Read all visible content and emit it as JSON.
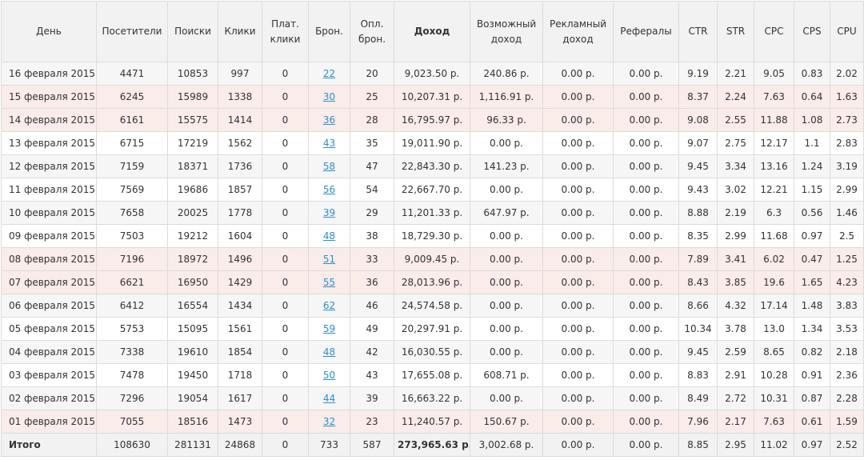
{
  "table": {
    "headers": [
      "День",
      "Посетители",
      "Поиски",
      "Клики",
      "Плат. клики",
      "Брон.",
      "Опл. брон.",
      "Доход",
      "Возможный доход",
      "Рекламный доход",
      "Рефералы",
      "CTR",
      "STR",
      "CPC",
      "CPS",
      "CPU"
    ],
    "rows": [
      [
        "16 февраля 2015",
        "4471",
        "10853",
        "997",
        "0",
        "22",
        "20",
        "9,023.50 р.",
        "240.86 р.",
        "0.00 р.",
        "0.00 р.",
        "9.19",
        "2.21",
        "9.05",
        "0.83",
        "2.02"
      ],
      [
        "15 февраля 2015",
        "6245",
        "15989",
        "1338",
        "0",
        "30",
        "25",
        "10,207.31 р.",
        "1,116.91 р.",
        "0.00 р.",
        "0.00 р.",
        "8.37",
        "2.24",
        "7.63",
        "0.64",
        "1.63"
      ],
      [
        "14 февраля 2015",
        "6161",
        "15575",
        "1414",
        "0",
        "36",
        "28",
        "16,795.97 р.",
        "96.33 р.",
        "0.00 р.",
        "0.00 р.",
        "9.08",
        "2.55",
        "11.88",
        "1.08",
        "2.73"
      ],
      [
        "13 февраля 2015",
        "6715",
        "17219",
        "1562",
        "0",
        "43",
        "35",
        "19,011.90 р.",
        "0.00 р.",
        "0.00 р.",
        "0.00 р.",
        "9.07",
        "2.75",
        "12.17",
        "1.1",
        "2.83"
      ],
      [
        "12 февраля 2015",
        "7159",
        "18371",
        "1736",
        "0",
        "58",
        "47",
        "22,843.30 р.",
        "141.23 р.",
        "0.00 р.",
        "0.00 р.",
        "9.45",
        "3.34",
        "13.16",
        "1.24",
        "3.19"
      ],
      [
        "11 февраля 2015",
        "7569",
        "19686",
        "1857",
        "0",
        "56",
        "54",
        "22,667.70 р.",
        "0.00 р.",
        "0.00 р.",
        "0.00 р.",
        "9.43",
        "3.02",
        "12.21",
        "1.15",
        "2.99"
      ],
      [
        "10 февраля 2015",
        "7658",
        "20025",
        "1778",
        "0",
        "39",
        "29",
        "11,201.33 р.",
        "647.97 р.",
        "0.00 р.",
        "0.00 р.",
        "8.88",
        "2.19",
        "6.3",
        "0.56",
        "1.46"
      ],
      [
        "09 февраля 2015",
        "7503",
        "19212",
        "1604",
        "0",
        "48",
        "38",
        "18,729.30 р.",
        "0.00 р.",
        "0.00 р.",
        "0.00 р.",
        "8.35",
        "2.99",
        "11.68",
        "0.97",
        "2.5"
      ],
      [
        "08 февраля 2015",
        "7196",
        "18972",
        "1496",
        "0",
        "51",
        "33",
        "9,009.45 р.",
        "0.00 р.",
        "0.00 р.",
        "0.00 р.",
        "7.89",
        "3.41",
        "6.02",
        "0.47",
        "1.25"
      ],
      [
        "07 февраля 2015",
        "6621",
        "16950",
        "1429",
        "0",
        "55",
        "36",
        "28,013.96 р.",
        "0.00 р.",
        "0.00 р.",
        "0.00 р.",
        "8.43",
        "3.85",
        "19.6",
        "1.65",
        "4.23"
      ],
      [
        "06 февраля 2015",
        "6412",
        "16554",
        "1434",
        "0",
        "62",
        "46",
        "24,574.58 р.",
        "0.00 р.",
        "0.00 р.",
        "0.00 р.",
        "8.66",
        "4.32",
        "17.14",
        "1.48",
        "3.83"
      ],
      [
        "05 февраля 2015",
        "5753",
        "15095",
        "1561",
        "0",
        "59",
        "49",
        "20,297.91 р.",
        "0.00 р.",
        "0.00 р.",
        "0.00 р.",
        "10.34",
        "3.78",
        "13.0",
        "1.34",
        "3.53"
      ],
      [
        "04 февраля 2015",
        "7338",
        "19610",
        "1854",
        "0",
        "48",
        "42",
        "16,030.55 р.",
        "0.00 р.",
        "0.00 р.",
        "0.00 р.",
        "9.45",
        "2.59",
        "8.65",
        "0.82",
        "2.18"
      ],
      [
        "03 февраля 2015",
        "7478",
        "19450",
        "1718",
        "0",
        "50",
        "43",
        "17,655.08 р.",
        "608.71 р.",
        "0.00 р.",
        "0.00 р.",
        "8.83",
        "2.91",
        "10.28",
        "0.91",
        "2.36"
      ],
      [
        "02 февраля 2015",
        "7296",
        "19054",
        "1617",
        "0",
        "44",
        "39",
        "16,663.22 р.",
        "0.00 р.",
        "0.00 р.",
        "0.00 р.",
        "8.49",
        "2.72",
        "10.31",
        "0.87",
        "2.28"
      ],
      [
        "01 февраля 2015",
        "7055",
        "18516",
        "1473",
        "0",
        "32",
        "23",
        "11,240.57 р.",
        "150.67 р.",
        "0.00 р.",
        "0.00 р.",
        "7.96",
        "2.17",
        "7.63",
        "0.61",
        "1.59"
      ]
    ],
    "total": [
      "Итого",
      "108630",
      "281131",
      "24868",
      "0",
      "733",
      "587",
      "273,965.63 р.",
      "3,002.68 р.",
      "0.00 р.",
      "0.00 р.",
      "8.85",
      "2.95",
      "11.02",
      "0.97",
      "2.52"
    ]
  }
}
